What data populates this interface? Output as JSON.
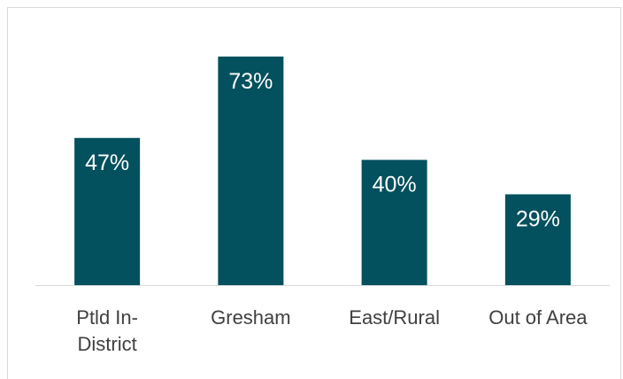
{
  "chart_data": {
    "type": "bar",
    "categories": [
      [
        "Ptld In-",
        "District"
      ],
      [
        "Gresham"
      ],
      [
        "East/Rural"
      ],
      [
        "Out of Area"
      ]
    ],
    "values": [
      47,
      73,
      40,
      29
    ],
    "value_labels": [
      "47%",
      "73%",
      "40%",
      "29%"
    ],
    "ylim": [
      0,
      82
    ],
    "grid": false,
    "legend": "none",
    "title": "",
    "xlabel": "",
    "ylabel": "",
    "colors": {
      "bar": "#03505e",
      "baseline": "#d9d9d9",
      "tick_text": "#404040",
      "bar_label": "#ffffff"
    }
  }
}
